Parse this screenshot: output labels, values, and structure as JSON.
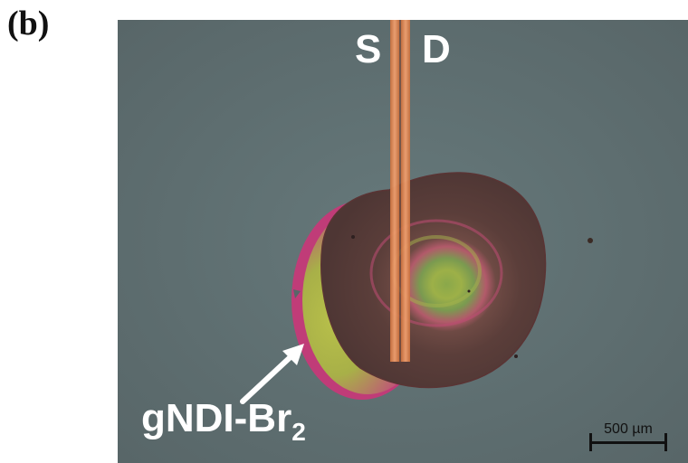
{
  "panel": {
    "label": "(b)"
  },
  "electrodes": {
    "source_label": "S",
    "drain_label": "D"
  },
  "sample": {
    "label_main": "gNDI-Br",
    "label_sub": "2"
  },
  "scalebar": {
    "text": "500 µm"
  },
  "colors": {
    "background": "#5f6d6f",
    "film_outer": "#5a3d3a",
    "film_ring_pink": "#c84a7a",
    "film_ring_green": "#8fa848",
    "electrode": "#e8925c"
  }
}
